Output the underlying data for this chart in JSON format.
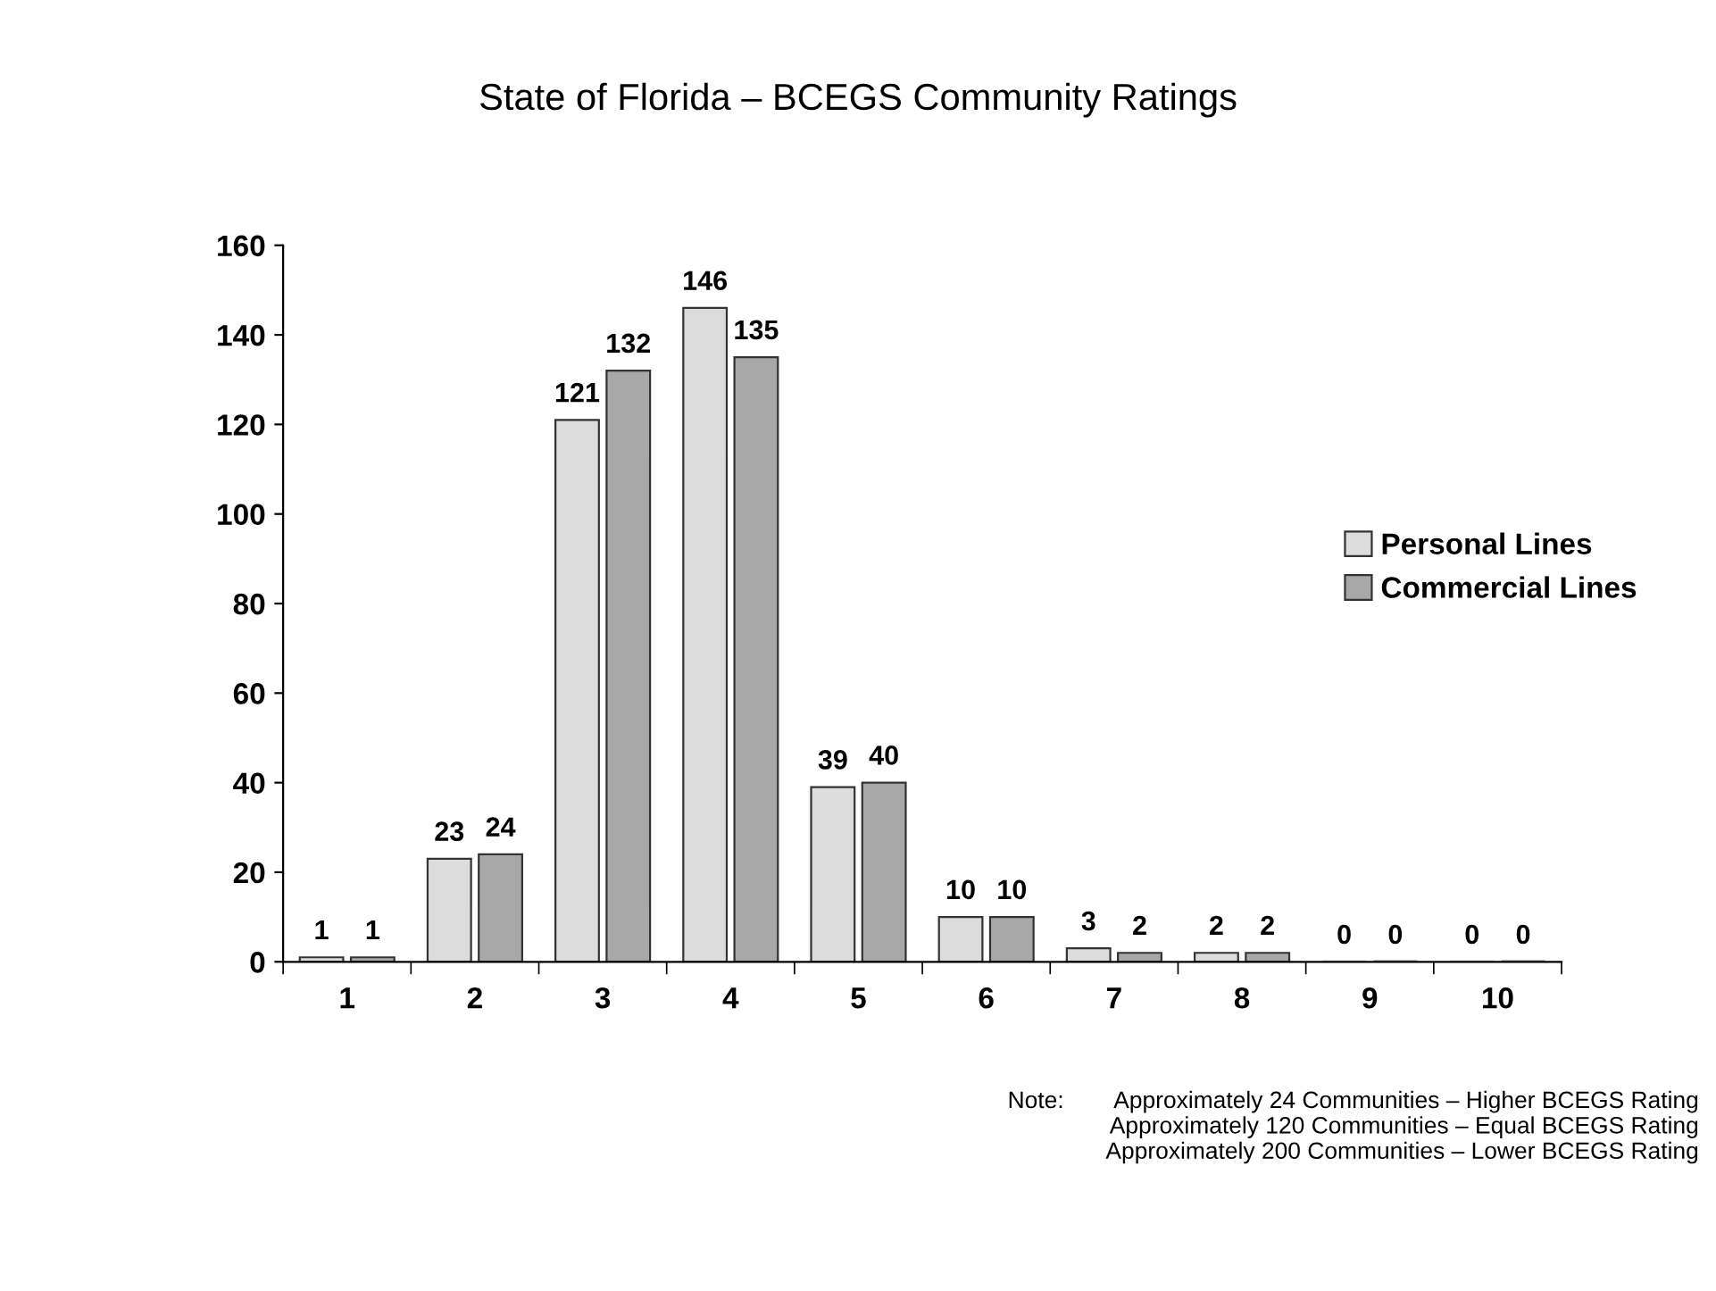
{
  "chart_data": {
    "type": "bar",
    "title": "State of Florida – BCEGS Community Ratings",
    "categories": [
      "1",
      "2",
      "3",
      "4",
      "5",
      "6",
      "7",
      "8",
      "9",
      "10"
    ],
    "series": [
      {
        "name": "Personal Lines",
        "color": "#dcdcdc",
        "values": [
          1,
          23,
          121,
          146,
          39,
          10,
          3,
          2,
          0,
          0
        ]
      },
      {
        "name": "Commercial Lines",
        "color": "#a8a8a8",
        "values": [
          1,
          24,
          132,
          135,
          40,
          10,
          2,
          2,
          0,
          0
        ]
      }
    ],
    "ylim": [
      0,
      160
    ],
    "yticks": [
      0,
      20,
      40,
      60,
      80,
      100,
      120,
      140,
      160
    ],
    "grid": false,
    "legend": "right",
    "data_labels": true,
    "annotations": [
      "Note:",
      "Approximately 24 Communities – Higher BCEGS Rating",
      "Approximately 120 Communities – Equal BCEGS Rating",
      "Approximately 200 Communities – Lower BCEGS Rating"
    ]
  }
}
